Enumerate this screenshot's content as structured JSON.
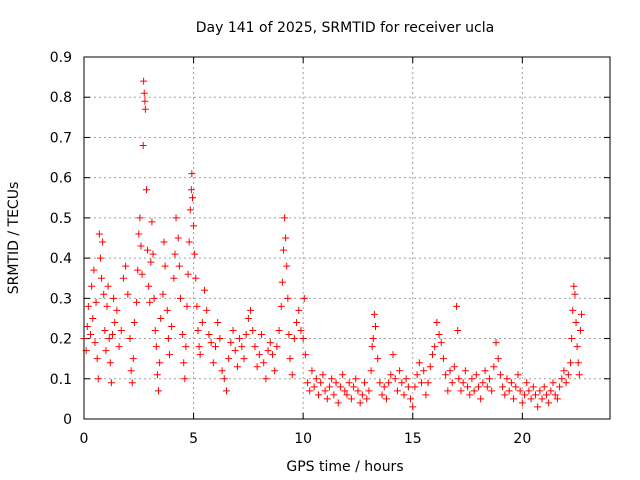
{
  "chart_data": {
    "type": "scatter",
    "title": "Day 141 of 2025, SRMTID for receiver ucla",
    "xlabel": "GPS time / hours",
    "ylabel": "SRMTID / TECUs",
    "xlim": [
      0,
      24
    ],
    "ylim": [
      0,
      0.9
    ],
    "x_ticks": [
      0,
      5,
      10,
      15,
      20
    ],
    "x_tick_labels": [
      "0",
      "5",
      "10",
      "15",
      "20"
    ],
    "y_ticks": [
      0,
      0.1,
      0.2,
      0.3,
      0.4,
      0.5,
      0.6,
      0.7,
      0.8,
      0.9
    ],
    "y_tick_labels": [
      "0",
      "0.1",
      "0.2",
      "0.3",
      "0.4",
      "0.5",
      "0.6",
      "0.7",
      "0.8",
      "0.9"
    ],
    "grid": true,
    "marker": "+",
    "color": "#ff0000",
    "series": [
      {
        "name": "SRMTID",
        "points": [
          [
            0.0,
            0.2
          ],
          [
            0.1,
            0.17
          ],
          [
            0.15,
            0.23
          ],
          [
            0.2,
            0.28
          ],
          [
            0.3,
            0.21
          ],
          [
            0.35,
            0.33
          ],
          [
            0.4,
            0.25
          ],
          [
            0.45,
            0.37
          ],
          [
            0.5,
            0.19
          ],
          [
            0.55,
            0.29
          ],
          [
            0.6,
            0.15
          ],
          [
            0.65,
            0.1
          ],
          [
            0.7,
            0.46
          ],
          [
            0.75,
            0.4
          ],
          [
            0.8,
            0.35
          ],
          [
            0.85,
            0.44
          ],
          [
            0.9,
            0.31
          ],
          [
            0.95,
            0.22
          ],
          [
            1.0,
            0.17
          ],
          [
            1.05,
            0.28
          ],
          [
            1.1,
            0.33
          ],
          [
            1.15,
            0.2
          ],
          [
            1.2,
            0.14
          ],
          [
            1.25,
            0.09
          ],
          [
            1.3,
            0.21
          ],
          [
            1.35,
            0.3
          ],
          [
            1.4,
            0.24
          ],
          [
            1.5,
            0.27
          ],
          [
            1.6,
            0.18
          ],
          [
            1.7,
            0.22
          ],
          [
            1.8,
            0.35
          ],
          [
            1.9,
            0.38
          ],
          [
            2.0,
            0.31
          ],
          [
            2.1,
            0.2
          ],
          [
            2.15,
            0.12
          ],
          [
            2.2,
            0.09
          ],
          [
            2.25,
            0.15
          ],
          [
            2.3,
            0.24
          ],
          [
            2.4,
            0.29
          ],
          [
            2.45,
            0.37
          ],
          [
            2.5,
            0.46
          ],
          [
            2.55,
            0.5
          ],
          [
            2.6,
            0.43
          ],
          [
            2.65,
            0.36
          ],
          [
            2.7,
            0.68
          ],
          [
            2.72,
            0.84
          ],
          [
            2.75,
            0.81
          ],
          [
            2.78,
            0.79
          ],
          [
            2.8,
            0.77
          ],
          [
            2.85,
            0.57
          ],
          [
            2.9,
            0.42
          ],
          [
            2.95,
            0.33
          ],
          [
            3.0,
            0.29
          ],
          [
            3.05,
            0.39
          ],
          [
            3.1,
            0.49
          ],
          [
            3.15,
            0.41
          ],
          [
            3.2,
            0.3
          ],
          [
            3.25,
            0.22
          ],
          [
            3.3,
            0.18
          ],
          [
            3.35,
            0.11
          ],
          [
            3.4,
            0.07
          ],
          [
            3.45,
            0.14
          ],
          [
            3.5,
            0.25
          ],
          [
            3.6,
            0.31
          ],
          [
            3.65,
            0.44
          ],
          [
            3.7,
            0.38
          ],
          [
            3.8,
            0.27
          ],
          [
            3.85,
            0.2
          ],
          [
            3.9,
            0.16
          ],
          [
            4.0,
            0.23
          ],
          [
            4.1,
            0.35
          ],
          [
            4.15,
            0.41
          ],
          [
            4.2,
            0.5
          ],
          [
            4.3,
            0.45
          ],
          [
            4.35,
            0.38
          ],
          [
            4.4,
            0.3
          ],
          [
            4.5,
            0.21
          ],
          [
            4.55,
            0.14
          ],
          [
            4.6,
            0.1
          ],
          [
            4.65,
            0.18
          ],
          [
            4.7,
            0.28
          ],
          [
            4.75,
            0.36
          ],
          [
            4.8,
            0.44
          ],
          [
            4.85,
            0.52
          ],
          [
            4.9,
            0.57
          ],
          [
            4.92,
            0.61
          ],
          [
            4.95,
            0.55
          ],
          [
            5.0,
            0.48
          ],
          [
            5.05,
            0.41
          ],
          [
            5.1,
            0.35
          ],
          [
            5.15,
            0.28
          ],
          [
            5.2,
            0.22
          ],
          [
            5.25,
            0.18
          ],
          [
            5.3,
            0.16
          ],
          [
            5.4,
            0.24
          ],
          [
            5.5,
            0.32
          ],
          [
            5.6,
            0.27
          ],
          [
            5.7,
            0.21
          ],
          [
            5.8,
            0.19
          ],
          [
            5.9,
            0.14
          ],
          [
            6.0,
            0.18
          ],
          [
            6.1,
            0.24
          ],
          [
            6.2,
            0.2
          ],
          [
            6.3,
            0.12
          ],
          [
            6.4,
            0.1
          ],
          [
            6.5,
            0.07
          ],
          [
            6.6,
            0.15
          ],
          [
            6.7,
            0.19
          ],
          [
            6.8,
            0.22
          ],
          [
            6.9,
            0.17
          ],
          [
            7.0,
            0.13
          ],
          [
            7.1,
            0.2
          ],
          [
            7.2,
            0.18
          ],
          [
            7.3,
            0.15
          ],
          [
            7.4,
            0.21
          ],
          [
            7.5,
            0.25
          ],
          [
            7.6,
            0.27
          ],
          [
            7.7,
            0.22
          ],
          [
            7.8,
            0.18
          ],
          [
            7.9,
            0.13
          ],
          [
            8.0,
            0.16
          ],
          [
            8.1,
            0.21
          ],
          [
            8.2,
            0.14
          ],
          [
            8.3,
            0.1
          ],
          [
            8.4,
            0.17
          ],
          [
            8.5,
            0.19
          ],
          [
            8.6,
            0.16
          ],
          [
            8.7,
            0.12
          ],
          [
            8.8,
            0.18
          ],
          [
            8.9,
            0.22
          ],
          [
            9.0,
            0.28
          ],
          [
            9.05,
            0.34
          ],
          [
            9.1,
            0.42
          ],
          [
            9.15,
            0.5
          ],
          [
            9.2,
            0.45
          ],
          [
            9.25,
            0.38
          ],
          [
            9.3,
            0.3
          ],
          [
            9.35,
            0.21
          ],
          [
            9.4,
            0.15
          ],
          [
            9.5,
            0.11
          ],
          [
            9.6,
            0.2
          ],
          [
            9.7,
            0.24
          ],
          [
            9.8,
            0.27
          ],
          [
            9.9,
            0.22
          ],
          [
            10.0,
            0.2
          ],
          [
            10.05,
            0.3
          ],
          [
            10.1,
            0.16
          ],
          [
            10.2,
            0.09
          ],
          [
            10.3,
            0.07
          ],
          [
            10.4,
            0.12
          ],
          [
            10.5,
            0.08
          ],
          [
            10.6,
            0.1
          ],
          [
            10.7,
            0.06
          ],
          [
            10.8,
            0.09
          ],
          [
            10.9,
            0.11
          ],
          [
            11.0,
            0.07
          ],
          [
            11.1,
            0.05
          ],
          [
            11.2,
            0.08
          ],
          [
            11.3,
            0.1
          ],
          [
            11.4,
            0.06
          ],
          [
            11.5,
            0.09
          ],
          [
            11.6,
            0.04
          ],
          [
            11.7,
            0.08
          ],
          [
            11.8,
            0.11
          ],
          [
            11.9,
            0.07
          ],
          [
            12.0,
            0.06
          ],
          [
            12.1,
            0.09
          ],
          [
            12.2,
            0.05
          ],
          [
            12.3,
            0.08
          ],
          [
            12.4,
            0.1
          ],
          [
            12.5,
            0.07
          ],
          [
            12.6,
            0.04
          ],
          [
            12.7,
            0.06
          ],
          [
            12.8,
            0.09
          ],
          [
            12.9,
            0.05
          ],
          [
            13.0,
            0.07
          ],
          [
            13.1,
            0.12
          ],
          [
            13.15,
            0.18
          ],
          [
            13.2,
            0.2
          ],
          [
            13.25,
            0.26
          ],
          [
            13.3,
            0.23
          ],
          [
            13.4,
            0.15
          ],
          [
            13.5,
            0.09
          ],
          [
            13.6,
            0.06
          ],
          [
            13.7,
            0.08
          ],
          [
            13.8,
            0.05
          ],
          [
            13.9,
            0.09
          ],
          [
            14.0,
            0.11
          ],
          [
            14.1,
            0.16
          ],
          [
            14.2,
            0.1
          ],
          [
            14.3,
            0.07
          ],
          [
            14.4,
            0.12
          ],
          [
            14.5,
            0.09
          ],
          [
            14.6,
            0.06
          ],
          [
            14.7,
            0.1
          ],
          [
            14.8,
            0.08
          ],
          [
            14.9,
            0.05
          ],
          [
            15.0,
            0.03
          ],
          [
            15.1,
            0.08
          ],
          [
            15.2,
            0.11
          ],
          [
            15.3,
            0.14
          ],
          [
            15.4,
            0.09
          ],
          [
            15.5,
            0.12
          ],
          [
            15.6,
            0.06
          ],
          [
            15.7,
            0.09
          ],
          [
            15.8,
            0.13
          ],
          [
            15.9,
            0.16
          ],
          [
            16.0,
            0.18
          ],
          [
            16.1,
            0.24
          ],
          [
            16.2,
            0.21
          ],
          [
            16.3,
            0.19
          ],
          [
            16.4,
            0.15
          ],
          [
            16.5,
            0.11
          ],
          [
            16.6,
            0.07
          ],
          [
            16.7,
            0.12
          ],
          [
            16.8,
            0.09
          ],
          [
            16.9,
            0.13
          ],
          [
            17.0,
            0.28
          ],
          [
            17.05,
            0.22
          ],
          [
            17.1,
            0.1
          ],
          [
            17.2,
            0.07
          ],
          [
            17.3,
            0.09
          ],
          [
            17.4,
            0.12
          ],
          [
            17.5,
            0.08
          ],
          [
            17.6,
            0.06
          ],
          [
            17.7,
            0.1
          ],
          [
            17.8,
            0.07
          ],
          [
            17.9,
            0.11
          ],
          [
            18.0,
            0.08
          ],
          [
            18.1,
            0.05
          ],
          [
            18.2,
            0.09
          ],
          [
            18.3,
            0.12
          ],
          [
            18.4,
            0.08
          ],
          [
            18.5,
            0.1
          ],
          [
            18.6,
            0.07
          ],
          [
            18.7,
            0.13
          ],
          [
            18.8,
            0.19
          ],
          [
            18.9,
            0.15
          ],
          [
            19.0,
            0.11
          ],
          [
            19.1,
            0.08
          ],
          [
            19.2,
            0.06
          ],
          [
            19.3,
            0.1
          ],
          [
            19.4,
            0.07
          ],
          [
            19.5,
            0.09
          ],
          [
            19.6,
            0.05
          ],
          [
            19.7,
            0.08
          ],
          [
            19.8,
            0.11
          ],
          [
            19.9,
            0.07
          ],
          [
            20.0,
            0.04
          ],
          [
            20.1,
            0.06
          ],
          [
            20.2,
            0.09
          ],
          [
            20.3,
            0.07
          ],
          [
            20.4,
            0.05
          ],
          [
            20.5,
            0.08
          ],
          [
            20.6,
            0.06
          ],
          [
            20.7,
            0.03
          ],
          [
            20.8,
            0.07
          ],
          [
            20.9,
            0.05
          ],
          [
            21.0,
            0.08
          ],
          [
            21.1,
            0.06
          ],
          [
            21.2,
            0.04
          ],
          [
            21.3,
            0.07
          ],
          [
            21.4,
            0.09
          ],
          [
            21.5,
            0.06
          ],
          [
            21.6,
            0.05
          ],
          [
            21.7,
            0.08
          ],
          [
            21.8,
            0.1
          ],
          [
            21.9,
            0.12
          ],
          [
            22.0,
            0.09
          ],
          [
            22.1,
            0.11
          ],
          [
            22.2,
            0.14
          ],
          [
            22.25,
            0.2
          ],
          [
            22.3,
            0.27
          ],
          [
            22.35,
            0.33
          ],
          [
            22.4,
            0.31
          ],
          [
            22.45,
            0.24
          ],
          [
            22.5,
            0.18
          ],
          [
            22.55,
            0.14
          ],
          [
            22.6,
            0.11
          ],
          [
            22.65,
            0.22
          ],
          [
            22.7,
            0.26
          ]
        ]
      }
    ]
  }
}
